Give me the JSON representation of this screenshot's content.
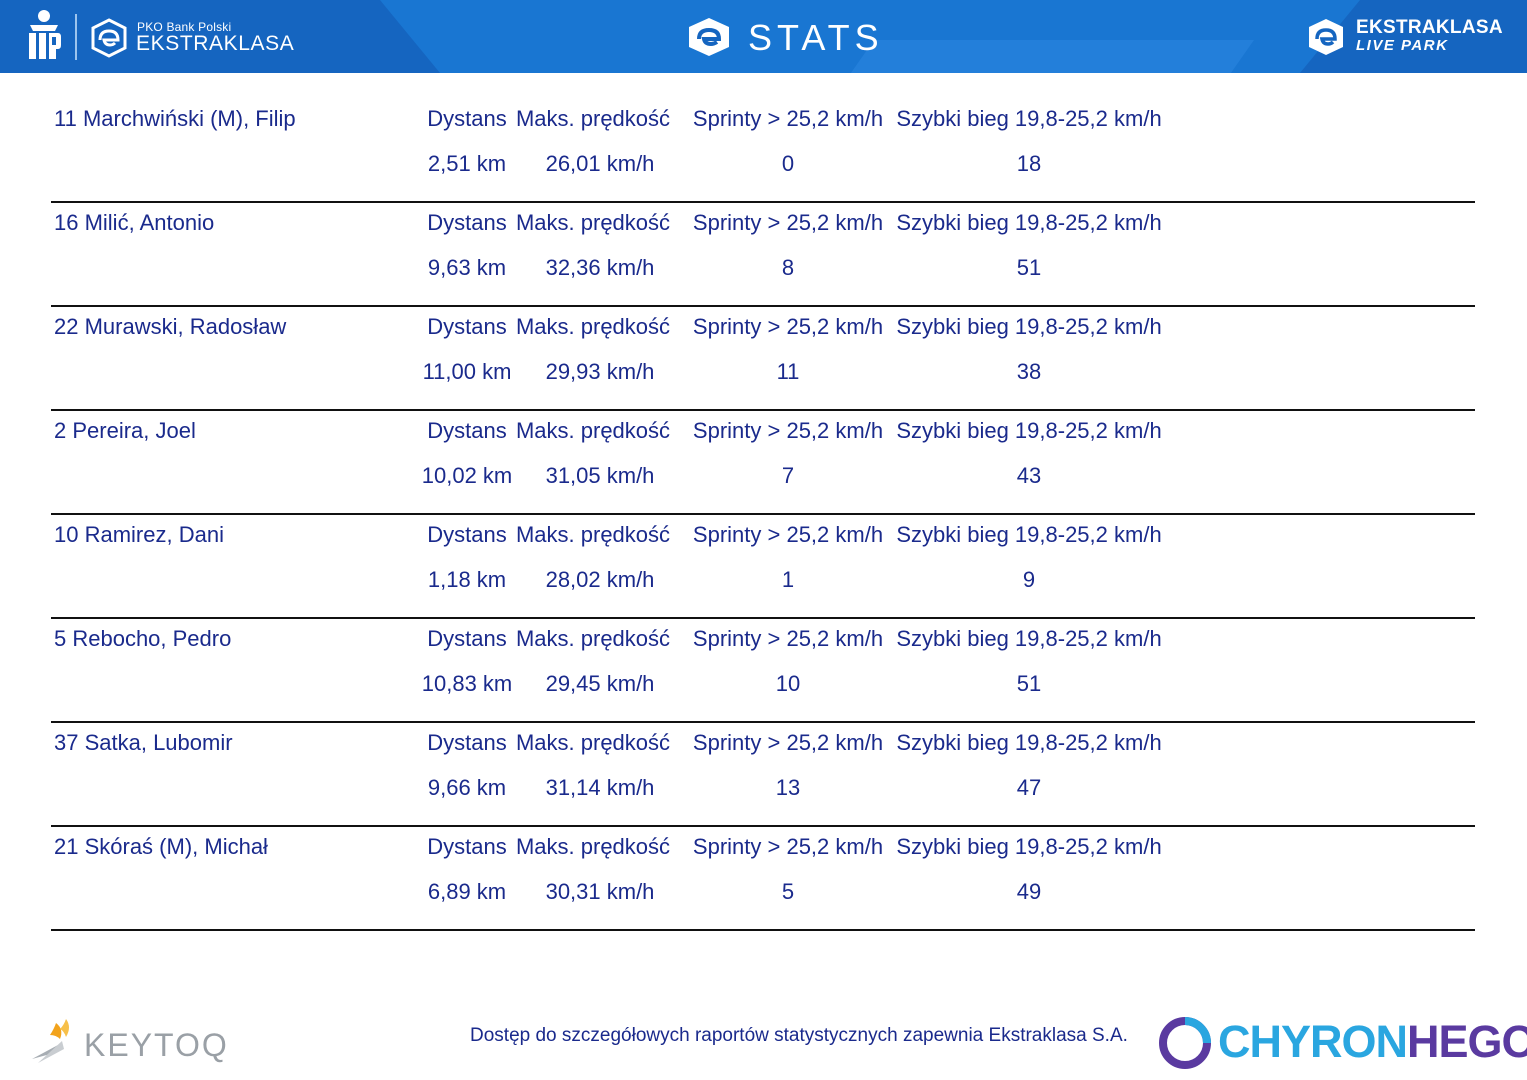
{
  "header": {
    "brand_small": "PKO Bank Polski",
    "brand_big": "EKSTRAKLASA",
    "title": "STATS",
    "live_park_line1": "EKSTRAKLASA",
    "live_park_line2": "LIVE PARK"
  },
  "columns": {
    "distance": "Dystans",
    "max_speed": "Maks. prędkość",
    "sprints": "Sprinty > 25,2 km/h",
    "fast_runs": "Szybki bieg 19,8-25,2 km/h"
  },
  "players": [
    {
      "name": "11  Marchwiński (M), Filip",
      "distance": "2,51 km",
      "max_speed": "26,01 km/h",
      "sprints": "0",
      "fast_runs": "18"
    },
    {
      "name": "16  Milić, Antonio",
      "distance": "9,63 km",
      "max_speed": "32,36 km/h",
      "sprints": "8",
      "fast_runs": "51"
    },
    {
      "name": "22  Murawski, Radosław",
      "distance": "11,00 km",
      "max_speed": "29,93 km/h",
      "sprints": "11",
      "fast_runs": "38"
    },
    {
      "name": "2  Pereira, Joel",
      "distance": "10,02 km",
      "max_speed": "31,05 km/h",
      "sprints": "7",
      "fast_runs": "43"
    },
    {
      "name": "10  Ramirez, Dani",
      "distance": "1,18 km",
      "max_speed": "28,02 km/h",
      "sprints": "1",
      "fast_runs": "9"
    },
    {
      "name": "5  Rebocho, Pedro",
      "distance": "10,83 km",
      "max_speed": "29,45 km/h",
      "sprints": "10",
      "fast_runs": "51"
    },
    {
      "name": "37  Satka, Lubomir",
      "distance": "9,66 km",
      "max_speed": "31,14 km/h",
      "sprints": "13",
      "fast_runs": "47"
    },
    {
      "name": "21  Skóraś (M), Michał",
      "distance": "6,89 km",
      "max_speed": "30,31 km/h",
      "sprints": "5",
      "fast_runs": "49"
    }
  ],
  "footer": {
    "keytoq": "KEYTOQ",
    "note": "Dostęp do szczegółowych raportów statystycznych zapewnia Ekstraklasa S.A.",
    "chyron_part1": "CHYRON",
    "chyron_part2": "HEGO"
  },
  "colors": {
    "banner": "#1565c0",
    "text": "#1a2a8c",
    "divider": "#111111"
  }
}
